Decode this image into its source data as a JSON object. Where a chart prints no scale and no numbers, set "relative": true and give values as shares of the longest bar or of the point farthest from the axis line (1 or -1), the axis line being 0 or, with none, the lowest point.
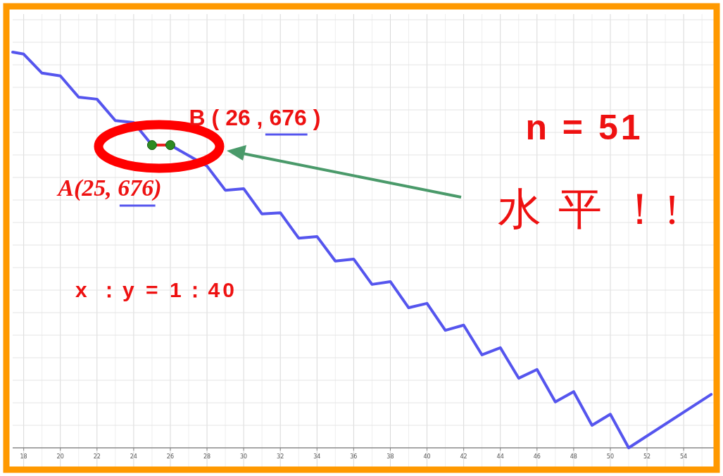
{
  "chart_data": {
    "type": "line",
    "relative": true,
    "xlim": [
      17.4,
      55.8
    ],
    "xticks": [
      18,
      20,
      22,
      24,
      26,
      28,
      30,
      32,
      34,
      36,
      38,
      40,
      42,
      44,
      46,
      48,
      50,
      52,
      54
    ],
    "grid": "x",
    "series": [
      {
        "type": "line",
        "color": "#5555ee",
        "x": [
          17.4,
          18,
          19,
          20,
          21,
          22,
          23,
          24,
          25,
          26,
          28,
          29,
          30,
          31,
          32,
          33,
          34,
          35,
          36,
          37,
          38,
          39,
          40,
          41,
          42,
          43,
          44,
          45,
          46,
          47,
          48,
          49,
          50,
          51,
          55.5
        ],
        "values": [
          1.0,
          0.995,
          0.947,
          0.94,
          0.886,
          0.881,
          0.827,
          0.822,
          0.765,
          0.765,
          0.712,
          0.651,
          0.655,
          0.591,
          0.594,
          0.53,
          0.534,
          0.472,
          0.477,
          0.413,
          0.42,
          0.354,
          0.365,
          0.297,
          0.31,
          0.235,
          0.253,
          0.176,
          0.198,
          0.116,
          0.142,
          0.057,
          0.085,
          0.0,
          0.135
        ]
      },
      {
        "type": "line",
        "color": "#ee2222",
        "x": [
          25,
          26
        ],
        "values": [
          0.765,
          0.765
        ]
      },
      {
        "type": "scatter",
        "color": "#2e8b22",
        "x": [
          25,
          26
        ],
        "values": [
          0.765,
          0.765
        ]
      }
    ],
    "annotations": [
      {
        "text": "B ( 26 , 676 )",
        "x": 26,
        "y": 0.765
      },
      {
        "text": "A(25, 676)",
        "x": 25,
        "y": 0.765
      },
      "n = 51",
      "水 平 ！!",
      "x ：y = 1：40"
    ]
  }
}
